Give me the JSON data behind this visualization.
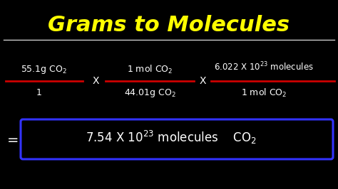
{
  "title": "Grams to Molecules",
  "title_color": "#FFFF00",
  "title_fontsize": 22,
  "background_color": "#000000",
  "text_color": "#FFFFFF",
  "line_color": "#CC0000",
  "box_color": "#3333FF",
  "figsize": [
    4.74,
    2.66
  ],
  "dpi": 100,
  "frac1_num": "55.1g CO",
  "frac1_den": "1",
  "frac2_num": "1 mol CO",
  "frac2_den": "44.01g CO",
  "frac3_num": "6.022 X 10",
  "frac3_num2": "molecules",
  "frac3_den": "1 mol CO",
  "result": "7.54 X 10",
  "result2": "molecules",
  "result3": "CO"
}
